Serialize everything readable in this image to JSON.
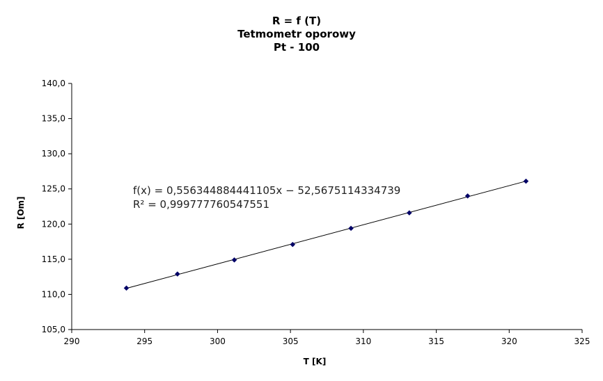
{
  "chart_data": {
    "type": "scatter",
    "title_lines": [
      "R = f (T)",
      "Tetmometr oporowy",
      "Pt - 100"
    ],
    "xlabel": "T [K]",
    "ylabel": "R [Om]",
    "xlim": [
      290,
      325
    ],
    "ylim": [
      105,
      140
    ],
    "x_ticks": [
      "290",
      "295",
      "300",
      "305",
      "310",
      "315",
      "320",
      "325"
    ],
    "y_ticks": [
      "105,0",
      "110,0",
      "115,0",
      "120,0",
      "125,0",
      "130,0",
      "135,0",
      "140,0"
    ],
    "grid": false,
    "marker_color": "#000066",
    "series": [
      {
        "x": [
          293.75,
          297.25,
          301.15,
          305.15,
          309.15,
          313.15,
          317.15,
          321.15
        ],
        "y": [
          110.9,
          112.9,
          114.9,
          117.1,
          119.4,
          121.6,
          124.0,
          126.1
        ]
      }
    ],
    "trendline": {
      "type": "linear",
      "slope": 0.556344884441105,
      "intercept": -52.5675114334739,
      "equation": "f(x) = 0,556344884441105x − 52,5675114334739",
      "r2": "R² = 0,999777760547551"
    }
  }
}
